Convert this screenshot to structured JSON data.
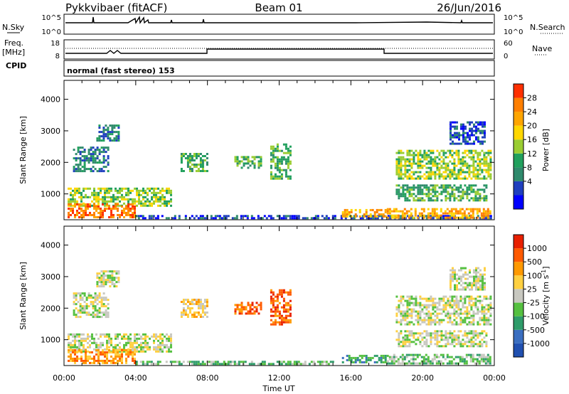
{
  "header": {
    "station": "Pykkvibaer (fitACF)",
    "beam": "Beam 01",
    "date": "26/Jun/2016"
  },
  "top_panels": {
    "nsky_label": "N.Sky",
    "nsky_ticks": [
      "10^5",
      "10^0"
    ],
    "nsearch_label": "N.Search",
    "nsearch_ticks": [
      "10^5",
      "10^0"
    ],
    "freq_label": "Freq.",
    "freq_unit": "[MHz]",
    "freq_ticks": [
      "18",
      "8"
    ],
    "nave_label": "Nave",
    "nave_ticks": [
      "60",
      "0"
    ],
    "cpid_label": "CPID",
    "cpid_text": "normal (fast stereo) 153"
  },
  "chart_data": [
    {
      "type": "heatmap",
      "name": "power",
      "ylabel": "Slant Range [km]",
      "ylim": [
        180,
        4600
      ],
      "yticks": [
        1000,
        2000,
        3000,
        4000
      ],
      "xlim": [
        0,
        24
      ],
      "colorbar_label": "Power [dB]",
      "colorbar_ticks": [
        "28",
        "24",
        "20",
        "16",
        "12",
        "8",
        "4"
      ],
      "colors": [
        "#0000ff",
        "#1f3fbe",
        "#2f8a6c",
        "#21a05d",
        "#9acd32",
        "#ffd700",
        "#ffa500",
        "#ff7f00",
        "#ff3000"
      ],
      "echo_regions": [
        {
          "t0": 0.5,
          "t1": 2.5,
          "r0": 1700,
          "r1": 2500,
          "level": 2
        },
        {
          "t0": 1.8,
          "t1": 3.0,
          "r0": 2700,
          "r1": 3200,
          "level": 2
        },
        {
          "t0": 0.2,
          "t1": 6.0,
          "r0": 600,
          "r1": 1200,
          "level": 4
        },
        {
          "t0": 0.2,
          "t1": 4.0,
          "r0": 250,
          "r1": 700,
          "level": 7
        },
        {
          "t0": 4.0,
          "t1": 23.8,
          "r0": 200,
          "r1": 330,
          "level": 1
        },
        {
          "t0": 6.5,
          "t1": 8.0,
          "r0": 1700,
          "r1": 2300,
          "level": 3
        },
        {
          "t0": 9.5,
          "t1": 11.0,
          "r0": 1800,
          "r1": 2200,
          "level": 3
        },
        {
          "t0": 11.5,
          "t1": 12.6,
          "r0": 1500,
          "r1": 2600,
          "level": 3
        },
        {
          "t0": 15.5,
          "t1": 18.0,
          "r0": 300,
          "r1": 520,
          "level": 6
        },
        {
          "t0": 18.5,
          "t1": 23.8,
          "r0": 1500,
          "r1": 2400,
          "level": 4
        },
        {
          "t0": 18.0,
          "t1": 23.8,
          "r0": 250,
          "r1": 550,
          "level": 6
        },
        {
          "t0": 18.5,
          "t1": 23.5,
          "r0": 800,
          "r1": 1300,
          "level": 3
        },
        {
          "t0": 21.5,
          "t1": 23.5,
          "r0": 2600,
          "r1": 3300,
          "level": 1
        }
      ]
    },
    {
      "type": "heatmap",
      "name": "velocity",
      "ylabel": "Slant Range [km]",
      "ylim": [
        180,
        4600
      ],
      "yticks": [
        1000,
        2000,
        3000,
        4000
      ],
      "xlim": [
        0,
        24
      ],
      "xticks": [
        "00:00",
        "04:00",
        "08:00",
        "12:00",
        "16:00",
        "20:00",
        "00:00"
      ],
      "xlabel": "Time UT",
      "colorbar_label": "Velocity [m s",
      "colorbar_ticks": [
        "1000",
        "500",
        "100",
        "25",
        "-25",
        "-100",
        "-500",
        "-1000"
      ],
      "colors": [
        "#2050b0",
        "#3a6ec0",
        "#2f9c6a",
        "#55c040",
        "#c8c8c0",
        "#ffd040",
        "#ff9900",
        "#ff5a00",
        "#e82000"
      ],
      "echo_regions": [
        {
          "t0": 0.5,
          "t1": 2.5,
          "r0": 1700,
          "r1": 2500,
          "level": 4
        },
        {
          "t0": 1.8,
          "t1": 3.0,
          "r0": 2700,
          "r1": 3200,
          "level": 4
        },
        {
          "t0": 0.2,
          "t1": 6.0,
          "r0": 600,
          "r1": 1200,
          "level": 4
        },
        {
          "t0": 0.2,
          "t1": 4.0,
          "r0": 250,
          "r1": 700,
          "level": 6
        },
        {
          "t0": 4.0,
          "t1": 15.0,
          "r0": 200,
          "r1": 330,
          "level": 3
        },
        {
          "t0": 6.5,
          "t1": 8.0,
          "r0": 1700,
          "r1": 2300,
          "level": 5
        },
        {
          "t0": 9.5,
          "t1": 11.0,
          "r0": 1800,
          "r1": 2200,
          "level": 7
        },
        {
          "t0": 11.5,
          "t1": 12.6,
          "r0": 1500,
          "r1": 2600,
          "level": 7
        },
        {
          "t0": 15.5,
          "t1": 18.0,
          "r0": 300,
          "r1": 520,
          "level": 2
        },
        {
          "t0": 18.5,
          "t1": 23.8,
          "r0": 1500,
          "r1": 2400,
          "level": 4
        },
        {
          "t0": 18.0,
          "t1": 23.8,
          "r0": 250,
          "r1": 550,
          "level": 3
        },
        {
          "t0": 18.5,
          "t1": 23.5,
          "r0": 800,
          "r1": 1300,
          "level": 4
        },
        {
          "t0": 21.5,
          "t1": 23.5,
          "r0": 2600,
          "r1": 3300,
          "level": 4
        }
      ]
    }
  ]
}
